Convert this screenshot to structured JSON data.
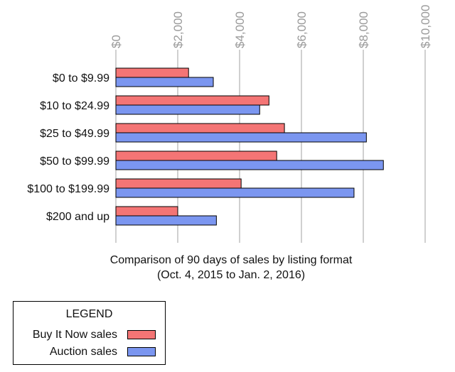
{
  "chart_data": {
    "type": "bar",
    "orientation": "horizontal",
    "categories": [
      "$0 to $9.99",
      "$10 to $24.99",
      "$25 to $49.99",
      "$50 to $99.99",
      "$100 to $199.99",
      "$200 and up"
    ],
    "series": [
      {
        "name": "Buy It Now sales",
        "color": "#f47575",
        "values": [
          2350,
          4950,
          5450,
          5200,
          4050,
          2000
        ]
      },
      {
        "name": "Auction sales",
        "color": "#7b96f0",
        "values": [
          3150,
          4650,
          8100,
          8650,
          7700,
          3250
        ]
      }
    ],
    "x_ticks": [
      "$0",
      "$2,000",
      "$4,000",
      "$6,000",
      "$8,000",
      "$10,000"
    ],
    "xlim": [
      0,
      10000
    ],
    "grid": true,
    "caption_line1": "Comparison of 90 days of sales by listing format",
    "caption_line2": "(Oct. 4, 2015 to Jan. 2, 2016)",
    "legend_position": "bottom-left"
  },
  "legend": {
    "title": "LEGEND",
    "items": [
      {
        "label": "Buy It Now sales",
        "color": "#f47575"
      },
      {
        "label": "Auction sales",
        "color": "#7b96f0"
      }
    ]
  }
}
